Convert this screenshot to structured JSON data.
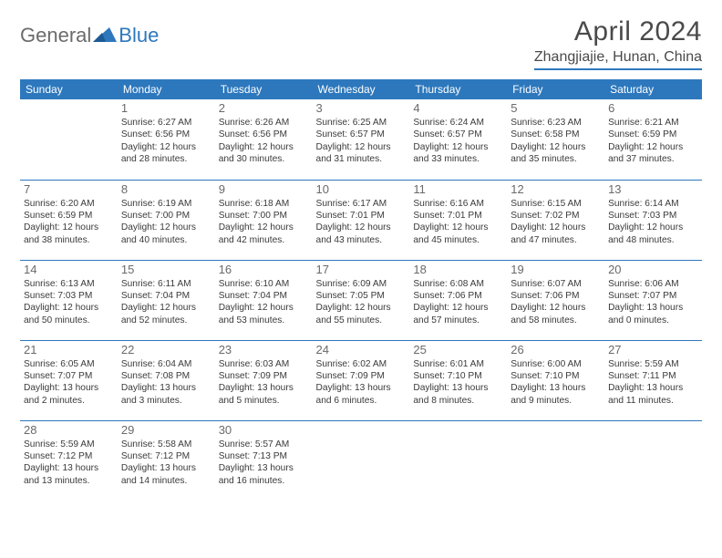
{
  "logo": {
    "text1": "General",
    "text2": "Blue"
  },
  "title": "April 2024",
  "location": "Zhangjiajie, Hunan, China",
  "colors": {
    "accent": "#2d78bd",
    "text": "#333333",
    "muted": "#6a6a6a",
    "logo_gray": "#6b6b6b",
    "bg": "#ffffff"
  },
  "weekdays": [
    "Sunday",
    "Monday",
    "Tuesday",
    "Wednesday",
    "Thursday",
    "Friday",
    "Saturday"
  ],
  "start_offset": 1,
  "days": [
    {
      "n": 1,
      "sr": "6:27 AM",
      "ss": "6:56 PM",
      "dl": "12 hours and 28 minutes."
    },
    {
      "n": 2,
      "sr": "6:26 AM",
      "ss": "6:56 PM",
      "dl": "12 hours and 30 minutes."
    },
    {
      "n": 3,
      "sr": "6:25 AM",
      "ss": "6:57 PM",
      "dl": "12 hours and 31 minutes."
    },
    {
      "n": 4,
      "sr": "6:24 AM",
      "ss": "6:57 PM",
      "dl": "12 hours and 33 minutes."
    },
    {
      "n": 5,
      "sr": "6:23 AM",
      "ss": "6:58 PM",
      "dl": "12 hours and 35 minutes."
    },
    {
      "n": 6,
      "sr": "6:21 AM",
      "ss": "6:59 PM",
      "dl": "12 hours and 37 minutes."
    },
    {
      "n": 7,
      "sr": "6:20 AM",
      "ss": "6:59 PM",
      "dl": "12 hours and 38 minutes."
    },
    {
      "n": 8,
      "sr": "6:19 AM",
      "ss": "7:00 PM",
      "dl": "12 hours and 40 minutes."
    },
    {
      "n": 9,
      "sr": "6:18 AM",
      "ss": "7:00 PM",
      "dl": "12 hours and 42 minutes."
    },
    {
      "n": 10,
      "sr": "6:17 AM",
      "ss": "7:01 PM",
      "dl": "12 hours and 43 minutes."
    },
    {
      "n": 11,
      "sr": "6:16 AM",
      "ss": "7:01 PM",
      "dl": "12 hours and 45 minutes."
    },
    {
      "n": 12,
      "sr": "6:15 AM",
      "ss": "7:02 PM",
      "dl": "12 hours and 47 minutes."
    },
    {
      "n": 13,
      "sr": "6:14 AM",
      "ss": "7:03 PM",
      "dl": "12 hours and 48 minutes."
    },
    {
      "n": 14,
      "sr": "6:13 AM",
      "ss": "7:03 PM",
      "dl": "12 hours and 50 minutes."
    },
    {
      "n": 15,
      "sr": "6:11 AM",
      "ss": "7:04 PM",
      "dl": "12 hours and 52 minutes."
    },
    {
      "n": 16,
      "sr": "6:10 AM",
      "ss": "7:04 PM",
      "dl": "12 hours and 53 minutes."
    },
    {
      "n": 17,
      "sr": "6:09 AM",
      "ss": "7:05 PM",
      "dl": "12 hours and 55 minutes."
    },
    {
      "n": 18,
      "sr": "6:08 AM",
      "ss": "7:06 PM",
      "dl": "12 hours and 57 minutes."
    },
    {
      "n": 19,
      "sr": "6:07 AM",
      "ss": "7:06 PM",
      "dl": "12 hours and 58 minutes."
    },
    {
      "n": 20,
      "sr": "6:06 AM",
      "ss": "7:07 PM",
      "dl": "13 hours and 0 minutes."
    },
    {
      "n": 21,
      "sr": "6:05 AM",
      "ss": "7:07 PM",
      "dl": "13 hours and 2 minutes."
    },
    {
      "n": 22,
      "sr": "6:04 AM",
      "ss": "7:08 PM",
      "dl": "13 hours and 3 minutes."
    },
    {
      "n": 23,
      "sr": "6:03 AM",
      "ss": "7:09 PM",
      "dl": "13 hours and 5 minutes."
    },
    {
      "n": 24,
      "sr": "6:02 AM",
      "ss": "7:09 PM",
      "dl": "13 hours and 6 minutes."
    },
    {
      "n": 25,
      "sr": "6:01 AM",
      "ss": "7:10 PM",
      "dl": "13 hours and 8 minutes."
    },
    {
      "n": 26,
      "sr": "6:00 AM",
      "ss": "7:10 PM",
      "dl": "13 hours and 9 minutes."
    },
    {
      "n": 27,
      "sr": "5:59 AM",
      "ss": "7:11 PM",
      "dl": "13 hours and 11 minutes."
    },
    {
      "n": 28,
      "sr": "5:59 AM",
      "ss": "7:12 PM",
      "dl": "13 hours and 13 minutes."
    },
    {
      "n": 29,
      "sr": "5:58 AM",
      "ss": "7:12 PM",
      "dl": "13 hours and 14 minutes."
    },
    {
      "n": 30,
      "sr": "5:57 AM",
      "ss": "7:13 PM",
      "dl": "13 hours and 16 minutes."
    }
  ],
  "labels": {
    "sunrise": "Sunrise:",
    "sunset": "Sunset:",
    "daylight": "Daylight:"
  }
}
